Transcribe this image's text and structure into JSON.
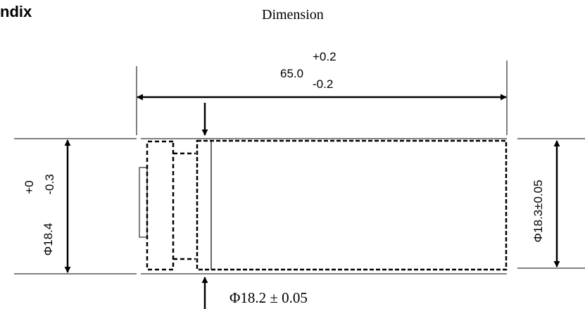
{
  "heading": "ndix",
  "subtitle": "Dimension",
  "length": {
    "nominal": "65.0",
    "tol_plus": "+0.2",
    "tol_minus": "-0.2"
  },
  "left_diameter": {
    "nominal": "Φ18.4",
    "tol_plus": "+0",
    "tol_minus": "-0.3"
  },
  "right_diameter": "Φ18.3±0.05",
  "bottom_diameter": "Φ18.2 ± 0.05",
  "colors": {
    "line": "#000000",
    "background": "#ffffff"
  }
}
